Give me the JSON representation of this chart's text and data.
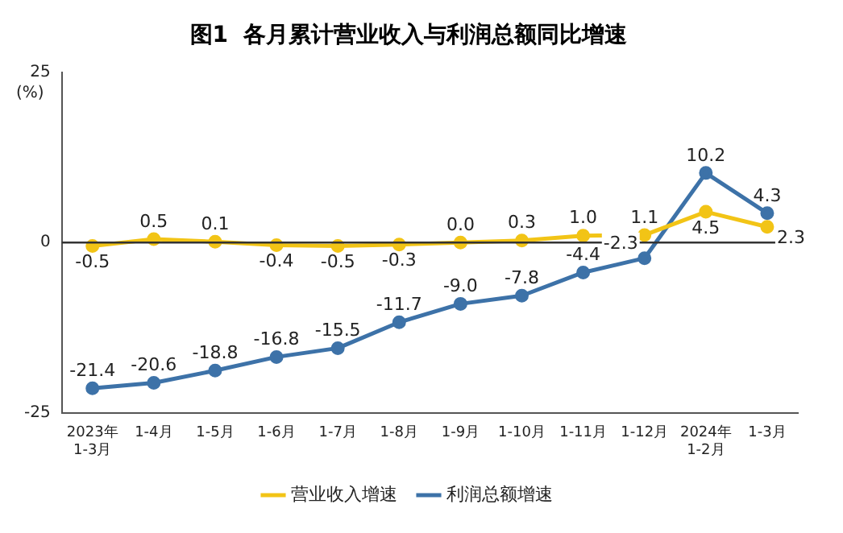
{
  "chart_data": {
    "type": "line",
    "title": "图1  各月累计营业收入与利润总额同比增速",
    "ylabel": "(%)",
    "categories": [
      "2023年\n1-3月",
      "1-4月",
      "1-5月",
      "1-6月",
      "1-7月",
      "1-8月",
      "1-9月",
      "1-10月",
      "1-11月",
      "1-12月",
      "2024年\n1-2月",
      "1-3月"
    ],
    "series": [
      {
        "name": "营业收入增速",
        "color": "#f2c416",
        "values": [
          -0.5,
          0.5,
          0.1,
          -0.4,
          -0.5,
          -0.3,
          0.0,
          0.3,
          1.0,
          1.1,
          4.5,
          2.3
        ],
        "value_labels": [
          "-0.5",
          "0.5",
          "0.1",
          "-0.4",
          "-0.5",
          "-0.3",
          "0.0",
          "0.3",
          "1.0",
          "1.1",
          "4.5",
          "2.3"
        ]
      },
      {
        "name": "利润总额增速",
        "color": "#3d72a8",
        "values": [
          -21.4,
          -20.6,
          -18.8,
          -16.8,
          -15.5,
          -11.7,
          -9.0,
          -7.8,
          -4.4,
          -2.3,
          10.2,
          4.3
        ],
        "value_labels": [
          "-21.4",
          "-20.6",
          "-18.8",
          "-16.8",
          "-15.5",
          "-11.7",
          "-9.0",
          "-7.8",
          "-4.4",
          "-2.3",
          "10.2",
          "4.3"
        ]
      }
    ],
    "ylim": [
      -25,
      25
    ],
    "yticks": [
      -25,
      0,
      25
    ],
    "grid": false,
    "legend": "bottom",
    "marker": "circle",
    "line_style": "solid",
    "ref_lines": [
      {
        "axis": "y",
        "value": 0,
        "color": "#333333"
      }
    ]
  }
}
